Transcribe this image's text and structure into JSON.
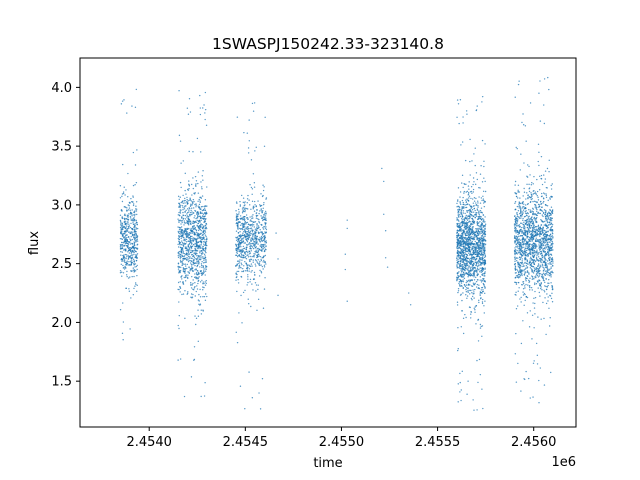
{
  "chart_data": {
    "type": "scatter",
    "title": "1SWASPJ150242.33-323140.8",
    "xlabel": "time",
    "ylabel": "flux",
    "x_offset_label": "1e6",
    "xlim": [
      2.45364,
      2.45622
    ],
    "ylim": [
      1.11,
      4.25
    ],
    "x_ticks": [
      2.454,
      2.4545,
      2.455,
      2.4555,
      2.456
    ],
    "x_tick_labels": [
      "2.4540",
      "2.4545",
      "2.4550",
      "2.4555",
      "2.4560"
    ],
    "y_ticks": [
      1.5,
      2.0,
      2.5,
      3.0,
      3.5,
      4.0
    ],
    "y_tick_labels": [
      "1.5",
      "2.0",
      "2.5",
      "3.0",
      "3.5",
      "4.0"
    ],
    "grid": false,
    "marker_color": "#1f77b4",
    "series": [
      {
        "clusters": [
          {
            "x_range": [
              2.45385,
              2.45394
            ],
            "center": 2.7,
            "spread": 0.17,
            "count": 500,
            "outliers_high": [
              3.6,
              4.0
            ],
            "outliers_low": [
              1.3,
              1.8
            ]
          },
          {
            "x_range": [
              2.45415,
              2.4543
            ],
            "center": 2.68,
            "spread": 0.22,
            "count": 1000,
            "outliers_high": [
              3.8,
              4.0
            ],
            "outliers_low": [
              1.25,
              1.6
            ]
          },
          {
            "x_range": [
              2.45445,
              2.45461
            ],
            "center": 2.7,
            "spread": 0.18,
            "count": 750,
            "outliers_high": [
              3.6,
              3.9
            ],
            "outliers_low": [
              1.25,
              1.7
            ]
          },
          {
            "x_range": [
              2.4556,
              2.45575
            ],
            "center": 2.65,
            "spread": 0.22,
            "count": 1500,
            "outliers_high": [
              3.8,
              4.1
            ],
            "outliers_low": [
              1.25,
              1.6
            ]
          },
          {
            "x_range": [
              2.4559,
              2.4561
            ],
            "center": 2.68,
            "spread": 0.22,
            "count": 1500,
            "outliers_high": [
              3.9,
              4.1
            ],
            "outliers_low": [
              1.3,
              1.6
            ]
          }
        ],
        "sparse_points": [
          [
            2.45466,
            2.76
          ],
          [
            2.45467,
            2.54
          ],
          [
            2.45467,
            2.23
          ],
          [
            2.45503,
            2.87
          ],
          [
            2.45503,
            2.8
          ],
          [
            2.45502,
            2.58
          ],
          [
            2.45502,
            2.45
          ],
          [
            2.45503,
            2.18
          ],
          [
            2.45521,
            3.31
          ],
          [
            2.45522,
            3.2
          ],
          [
            2.45522,
            2.92
          ],
          [
            2.45523,
            2.78
          ],
          [
            2.45523,
            2.55
          ],
          [
            2.45524,
            2.47
          ],
          [
            2.45535,
            2.25
          ],
          [
            2.45536,
            2.15
          ]
        ]
      }
    ]
  }
}
